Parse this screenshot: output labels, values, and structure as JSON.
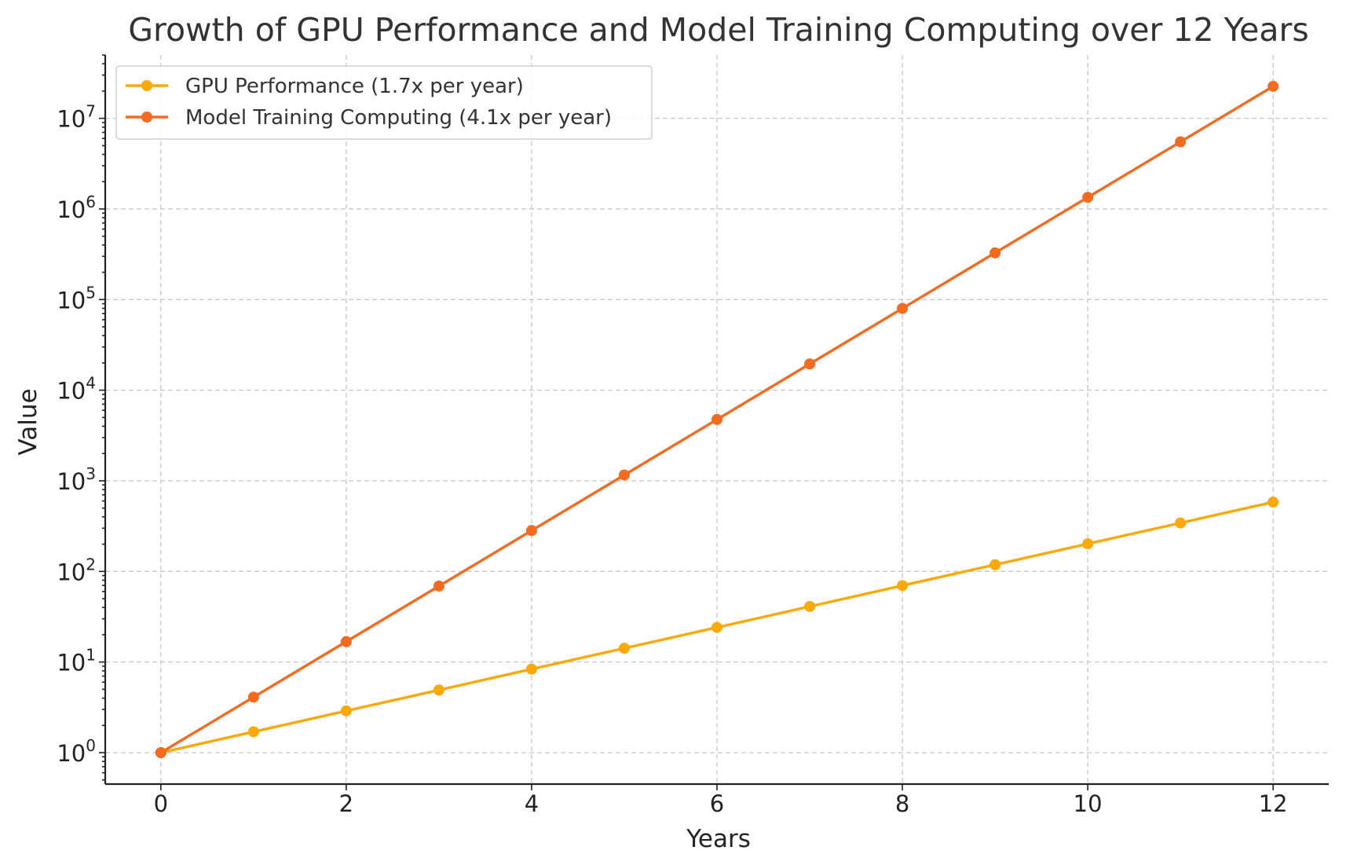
{
  "chart_data": {
    "type": "line",
    "title": "Growth of GPU Performance and Model Training Computing over 12 Years",
    "xlabel": "Years",
    "ylabel": "Value",
    "yscale": "log",
    "xlim": [
      -0.6,
      12.6
    ],
    "ylim": [
      0.45,
      50000000
    ],
    "grid": true,
    "legend_position": "top-left",
    "x": [
      0,
      1,
      2,
      3,
      4,
      5,
      6,
      7,
      8,
      9,
      10,
      11,
      12
    ],
    "x_ticks": [
      0,
      2,
      4,
      6,
      8,
      10,
      12
    ],
    "y_ticks": [
      {
        "value": 1,
        "base": "10",
        "exp": "0"
      },
      {
        "value": 10,
        "base": "10",
        "exp": "1"
      },
      {
        "value": 100,
        "base": "10",
        "exp": "2"
      },
      {
        "value": 1000,
        "base": "10",
        "exp": "3"
      },
      {
        "value": 10000,
        "base": "10",
        "exp": "4"
      },
      {
        "value": 100000,
        "base": "10",
        "exp": "5"
      },
      {
        "value": 1000000,
        "base": "10",
        "exp": "6"
      },
      {
        "value": 10000000,
        "base": "10",
        "exp": "7"
      }
    ],
    "series": [
      {
        "name": "GPU Performance (1.7x per year)",
        "color": "#F9A908",
        "values": [
          1,
          1.7,
          2.89,
          4.91,
          8.35,
          14.2,
          24.1,
          41.0,
          69.8,
          118.6,
          201.6,
          342.7,
          582.6
        ]
      },
      {
        "name": "Model Training Computing (4.1x per year)",
        "color": "#F26B21",
        "values": [
          1,
          4.1,
          16.81,
          68.9,
          282.6,
          1158.6,
          4750.1,
          19475.5,
          79849.3,
          327382,
          1342266,
          5503290,
          22563490
        ]
      }
    ]
  }
}
